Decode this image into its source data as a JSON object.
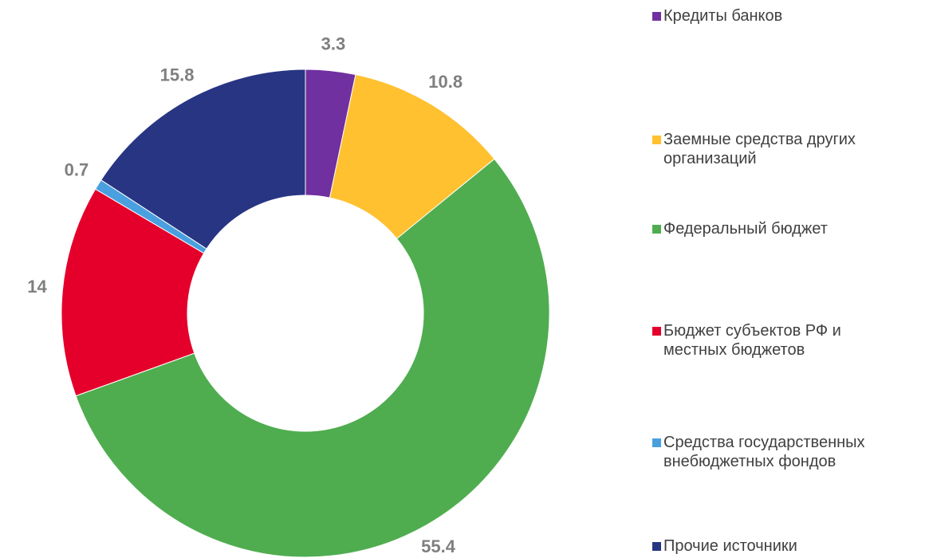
{
  "chart_data": {
    "type": "donut",
    "categories": [
      "Кредиты банков",
      "Заемные средства других организаций",
      "Федеральный бюджет",
      "Бюджет субъектов РФ и местных бюджетов",
      "Средства государственных внебюджетных фондов",
      "Прочие источники"
    ],
    "values": [
      3.3,
      10.8,
      55.4,
      14,
      0.7,
      15.8
    ],
    "colors": [
      "#7030a0",
      "#ffc12f",
      "#4fad4f",
      "#e4002b",
      "#4a9fdf",
      "#283583"
    ],
    "legend": "right"
  }
}
